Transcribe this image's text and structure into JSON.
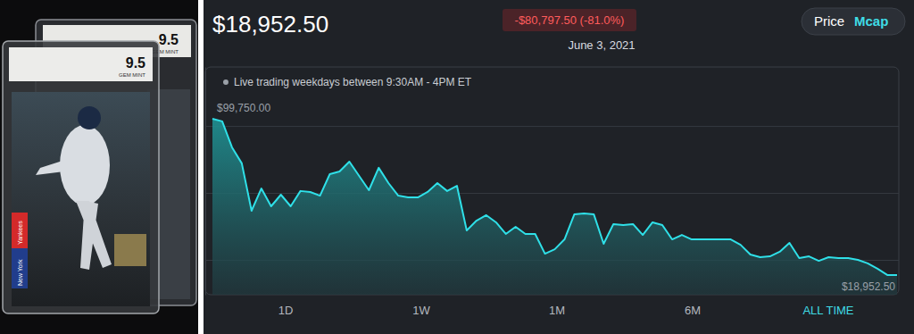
{
  "card": {
    "grades": [
      "9.5",
      "9.5"
    ],
    "grade_words": [
      "GEM MINT",
      "GEM MINT"
    ],
    "team_lines": [
      "New York",
      "Yankees"
    ]
  },
  "header": {
    "price": "$18,952.50",
    "change": "-$80,797.50 (-81.0%)",
    "date": "June 3, 2021",
    "toggle": [
      "Price",
      "Mcap"
    ],
    "note": "Live trading weekdays between 9:30AM - 4PM ET",
    "range_buttons": [
      "1D",
      "1W",
      "1M",
      "6M",
      "ALL TIME"
    ]
  },
  "chart_data": {
    "type": "line",
    "color": "#2fe0e8",
    "grid": true,
    "tick_labels": false,
    "annotations": [
      {
        "text": "$99,750.00"
      },
      {
        "text": "$18,952.50"
      }
    ],
    "categories": [
      null,
      null,
      null,
      null,
      null,
      null,
      null,
      null,
      null,
      null,
      null,
      null,
      null,
      null,
      null,
      null,
      null,
      null,
      null,
      null,
      null,
      null,
      null,
      null,
      null,
      null,
      null,
      null,
      null,
      null,
      null,
      null,
      null,
      null,
      null,
      null,
      null,
      null,
      null,
      null,
      null,
      null,
      null,
      null,
      null,
      null,
      null,
      null,
      null,
      null,
      null,
      null,
      null,
      null,
      null,
      null,
      null,
      null,
      null,
      null,
      null,
      null,
      null,
      null,
      null,
      null,
      null,
      null,
      null,
      null,
      null
    ],
    "values": [
      99750,
      98400,
      85000,
      76700,
      52200,
      63700,
      54500,
      60500,
      54500,
      62400,
      61900,
      60000,
      71100,
      72500,
      77600,
      70200,
      62800,
      74400,
      66500,
      60000,
      59100,
      59100,
      61900,
      66500,
      62400,
      65100,
      42000,
      47100,
      49900,
      46200,
      40200,
      43900,
      40200,
      40200,
      30000,
      32300,
      37400,
      50300,
      50800,
      50300,
      35100,
      45300,
      44800,
      45300,
      39700,
      46200,
      44800,
      37400,
      39700,
      37400,
      37400,
      37400,
      37400,
      37400,
      34600,
      29600,
      28200,
      28600,
      31000,
      35600,
      27700,
      28600,
      26300,
      28200,
      27700,
      27700,
      26800,
      25000,
      22200,
      19000,
      18952.5
    ],
    "ylim": [
      8800,
      126500
    ],
    "yticks": [
      26800,
      61400,
      96000
    ]
  }
}
